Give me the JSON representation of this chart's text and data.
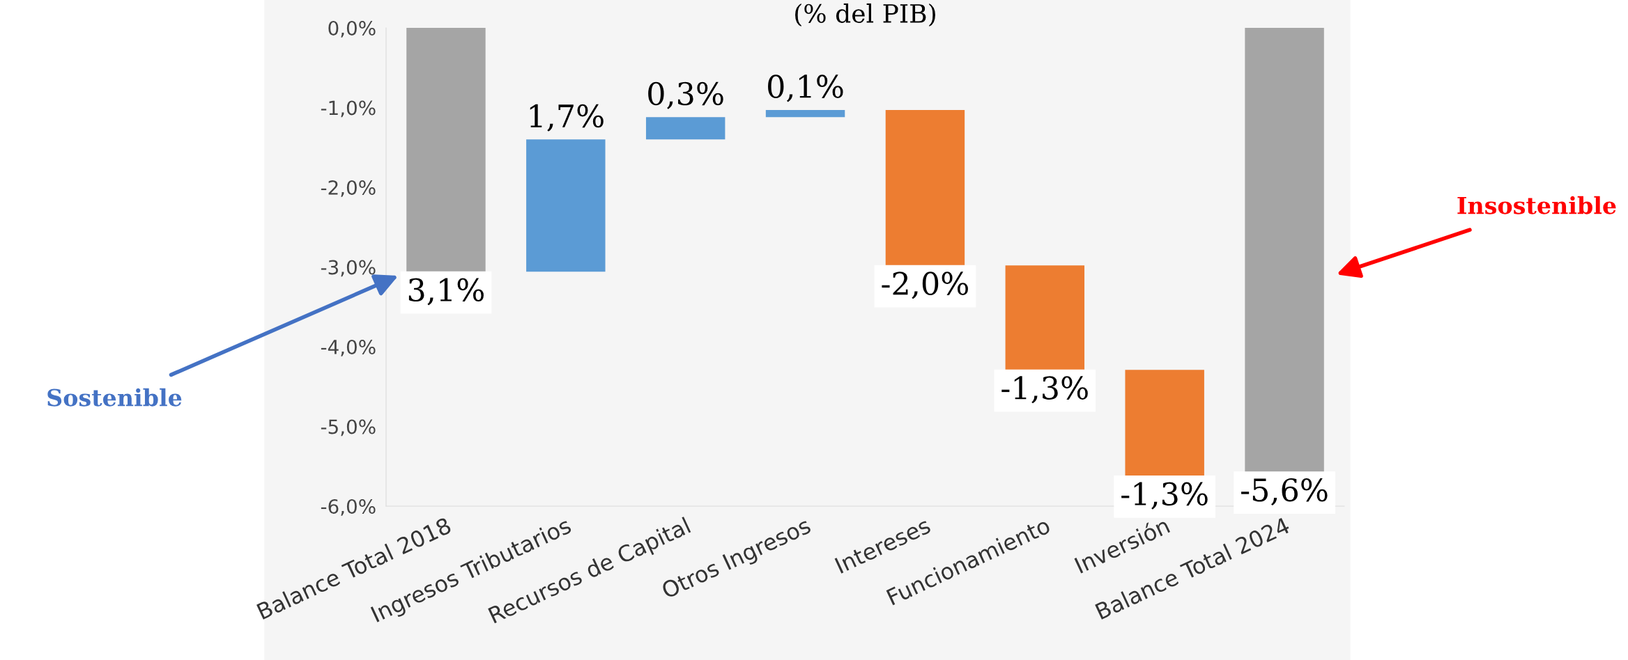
{
  "chart_data": {
    "type": "bar",
    "title": "(% del PIB)",
    "categories": [
      "Balance Total 2018",
      "Ingresos Tributarios",
      "Recursos de Capital",
      "Otros Ingresos",
      "Intereses",
      "Funcionamiento",
      "Inversión",
      "Balance Total 2024"
    ],
    "base": [
      0,
      -3.06,
      -1.4,
      -1.12,
      -1.03,
      -2.98,
      -4.29,
      0
    ],
    "values": [
      -3.06,
      1.66,
      0.28,
      0.09,
      -1.95,
      -1.31,
      -1.33,
      -5.57
    ],
    "colors": [
      "#a5a5a5",
      "#5b9bd5",
      "#5b9bd5",
      "#5b9bd5",
      "#ed7d31",
      "#ed7d31",
      "#ed7d31",
      "#a5a5a5"
    ],
    "value_labels": [
      "3,1%",
      "1,7%",
      "0,3%",
      "0,1%",
      "-2,0%",
      "-1,3%",
      "-1,3%",
      "-5,6%"
    ],
    "ylim": [
      -6,
      0
    ],
    "yticks": [
      {
        "value": -6,
        "label": "-6,0%"
      },
      {
        "value": -5,
        "label": "-5,0%"
      },
      {
        "value": -4,
        "label": "-4,0%"
      },
      {
        "value": -3,
        "label": "-3,0%"
      },
      {
        "value": -2,
        "label": "-2,0%"
      },
      {
        "value": -1,
        "label": "-1,0%"
      },
      {
        "value": 0,
        "label": "0,0%"
      }
    ],
    "grid": false,
    "legend": false,
    "annotations": [
      "Sostenible",
      "Insostenible"
    ]
  }
}
